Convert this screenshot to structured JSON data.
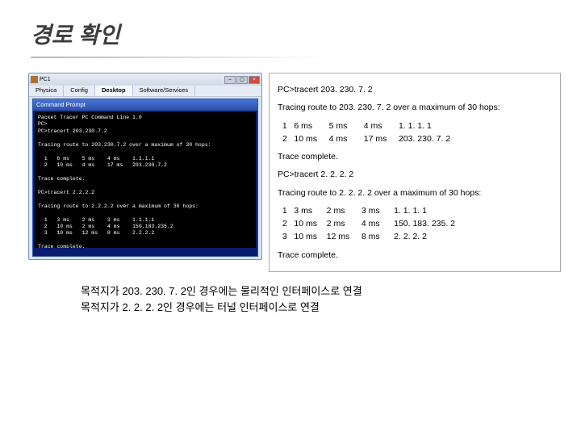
{
  "page": {
    "title": "경로 확인",
    "bottom_line1": "목적지가 203. 230. 7. 2인 경우에는 물리적인 인터페이스로 연결",
    "bottom_line2": "목적지가 2. 2. 2. 2인 경우에는 터널 인터페이스로 연결"
  },
  "window": {
    "title": "PC1",
    "tabs": [
      "Physica",
      "Config",
      "Desktop",
      "Software/Services"
    ],
    "active_tab_index": 2,
    "inner_title": "Command Prompt",
    "btn_min": "–",
    "btn_max": "▢",
    "btn_close": "×",
    "terminal_lines": [
      "Packet Tracer PC Command Line 1.0",
      "PC>",
      "PC>tracert 203.230.7.2",
      "",
      "Tracing route to 203.230.7.2 over a maximum of 30 hops:",
      "",
      "  1   6 ms    5 ms    4 ms    1.1.1.1",
      "  2   10 ms   4 ms    17 ms   203.230.7.2",
      "",
      "Trace complete.",
      "",
      "PC>tracert 2.2.2.2",
      "",
      "Tracing route to 2.2.2.2 over a maximum of 30 hops:",
      "",
      "  1   3 ms    2 ms    3 ms    1.1.1.1",
      "  2   10 ms   2 ms    4 ms    150.183.235.2",
      "  3   10 ms   12 ms   8 ms    2.2.2.2",
      "",
      "Trace complete.",
      "",
      "PC>"
    ]
  },
  "info": {
    "lines": [
      "PC>tracert 203. 230. 7. 2",
      "",
      "Tracing route to 203. 230. 7. 2 over a maximum of 30 hops:",
      "",
      "  1   6 ms       5 ms       4 ms       1. 1. 1. 1",
      "  2   10 ms     4 ms       17 ms     203. 230. 7. 2",
      "",
      "Trace complete.",
      "",
      "PC>tracert 2. 2. 2. 2",
      "",
      "Tracing route to 2. 2. 2. 2 over a maximum of 30 hops:",
      "",
      "  1   3 ms      2 ms       3 ms      1. 1. 1. 1",
      "  2   10 ms    2 ms       4 ms      150. 183. 235. 2",
      "  3   10 ms    12 ms     8 ms      2. 2. 2. 2",
      "",
      "Trace complete."
    ]
  },
  "colors": {
    "title_color": "#3d3d3d",
    "underline_start": "#b8b8b8",
    "window_border": "#7a93b5",
    "info_border": "#a8a8a8",
    "terminal_bg": "#000000",
    "terminal_fg": "#ffffff"
  }
}
